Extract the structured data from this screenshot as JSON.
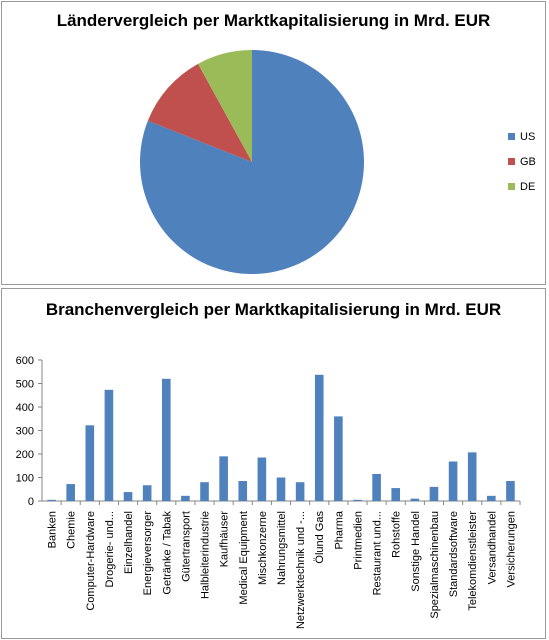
{
  "chart_data": [
    {
      "type": "pie",
      "title": "Ländervergleich per Marktkapitalisierung in Mrd. EUR",
      "categories": [
        "US",
        "GB",
        "DE"
      ],
      "values": [
        81,
        11,
        8
      ],
      "colors": [
        "#4F81BD",
        "#C0504D",
        "#9BBB59"
      ],
      "legend": "right"
    },
    {
      "type": "bar",
      "title": "Branchenvergleich per Marktkapitalisierung in Mrd. EUR",
      "categories": [
        "Banken",
        "Chemie",
        "Computer-Hardware",
        "Drogerie- und...",
        "Einzelhandel",
        "Energieversorger",
        "Getränke / Tabak",
        "Gütertransport",
        "Halbleiterindustrie",
        "Kaufhäuser",
        "Medical Equipment",
        "Mischkonzerne",
        "Nahrungsmittel",
        "Netzwerktechnik und -...",
        "Ölund Gas",
        "Pharma",
        "Printmedien",
        "Restaurant und...",
        "Rohstoffe",
        "Sonstige Handel",
        "Spezialmaschinenbau",
        "Standardsoftware",
        "Telekomdienstleister",
        "Versandhandel",
        "Versicherungen"
      ],
      "values": [
        5,
        72,
        322,
        473,
        38,
        67,
        520,
        22,
        80,
        190,
        85,
        185,
        100,
        80,
        537,
        360,
        5,
        115,
        55,
        10,
        60,
        168,
        207,
        22,
        85
      ],
      "ylim": [
        0,
        600
      ],
      "yticks": [
        0,
        100,
        200,
        300,
        400,
        500,
        600
      ],
      "grid": false,
      "color": "#4F81BD",
      "legend": "none"
    }
  ]
}
